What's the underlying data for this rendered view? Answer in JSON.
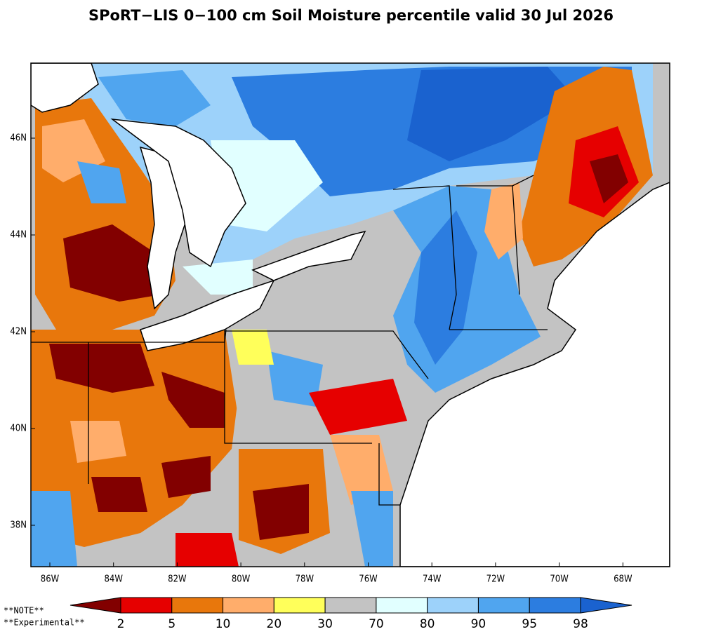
{
  "title": "SPoRT−LIS 0−100 cm Soil Moisture percentile valid 30 Jul 2026",
  "lat_labels": [
    "46N",
    "44N",
    "42N",
    "40N",
    "38N"
  ],
  "lon_labels": [
    "86W",
    "84W",
    "82W",
    "80W",
    "78W",
    "76W",
    "74W",
    "72W",
    "70W",
    "68W"
  ],
  "colorbar": {
    "colors": [
      "#820000",
      "#e60000",
      "#e8770c",
      "#ffad6b",
      "#ffff5a",
      "#c3c3c3",
      "#e1ffff",
      "#9dd2fa",
      "#50a5ef",
      "#2c7de0",
      "#1a62cf"
    ],
    "labels": [
      "2",
      "5",
      "10",
      "20",
      "30",
      "70",
      "80",
      "90",
      "95",
      "98"
    ]
  },
  "notes": [
    "**NOTE**",
    "**Experimental**"
  ]
}
